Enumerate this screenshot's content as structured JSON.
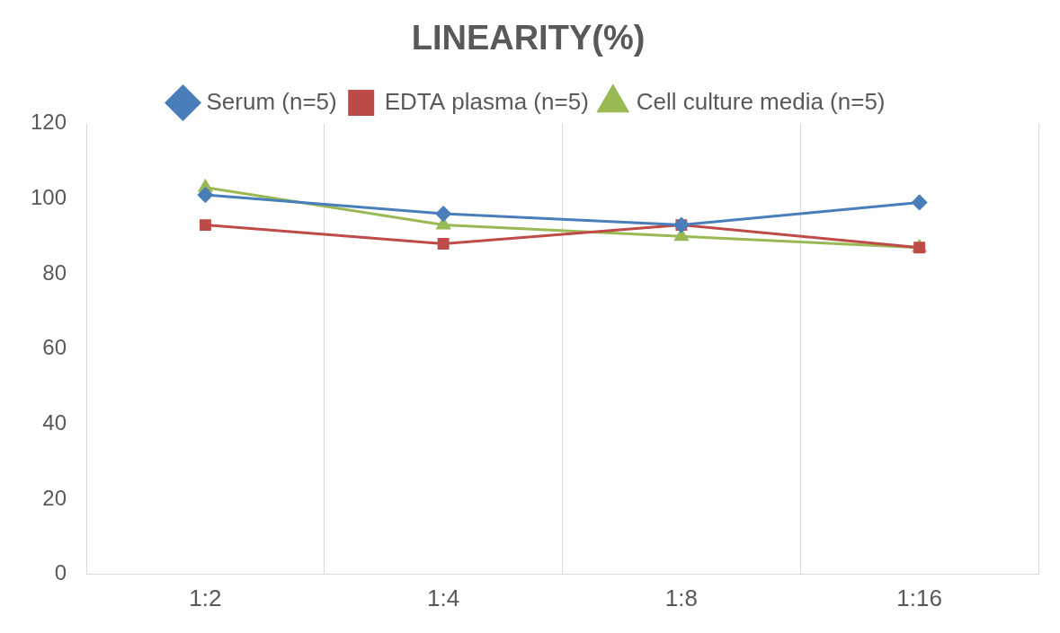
{
  "chart_data": {
    "type": "line",
    "title": "LINEARITY(%)",
    "categories": [
      "1:2",
      "1:4",
      "1:8",
      "1:16"
    ],
    "series": [
      {
        "name": "Serum (n=5)",
        "color": "#4a7ebb",
        "marker": "diamond",
        "values": [
          101,
          96,
          93,
          99
        ]
      },
      {
        "name": "EDTA plasma (n=5)",
        "color": "#be4b48",
        "marker": "square",
        "values": [
          93,
          88,
          93,
          87
        ]
      },
      {
        "name": "Cell culture media (n=5)",
        "color": "#98b954",
        "marker": "triangle",
        "values": [
          103,
          93,
          90,
          87
        ]
      }
    ],
    "ylim": [
      0,
      120
    ],
    "yticks": [
      0,
      20,
      40,
      60,
      80,
      100,
      120
    ],
    "grid": true,
    "legend": "top"
  }
}
